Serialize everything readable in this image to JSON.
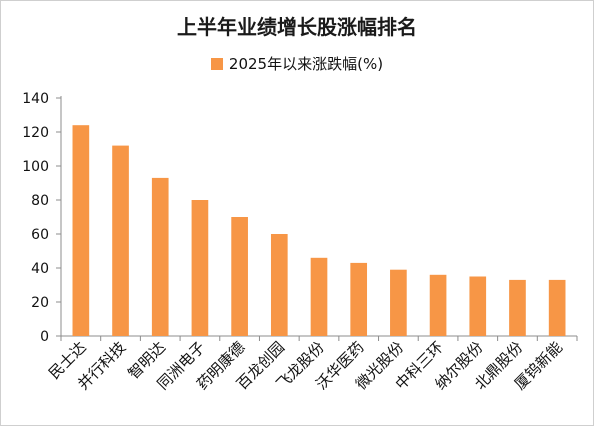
{
  "chart_data": {
    "type": "bar",
    "title": "上半年业绩增长股涨幅排名",
    "legend": {
      "placement": "top"
    },
    "series": [
      {
        "name": "2025年以来涨跌幅(%)",
        "color": "#F79646",
        "values": [
          124,
          112,
          93,
          80,
          70,
          60,
          46,
          43,
          39,
          36,
          35,
          33,
          33
        ]
      }
    ],
    "categories": [
      "民士达",
      "并行科技",
      "智明达",
      "同洲电子",
      "药明康德",
      "百龙创园",
      "飞龙股份",
      "沃华医药",
      "微光股份",
      "中科三环",
      "纳尔股份",
      "北鼎股份",
      "厦钨新能"
    ],
    "ylim": [
      0,
      140
    ],
    "yticks": [
      0,
      20,
      40,
      60,
      80,
      100,
      120,
      140
    ],
    "grid": false
  }
}
